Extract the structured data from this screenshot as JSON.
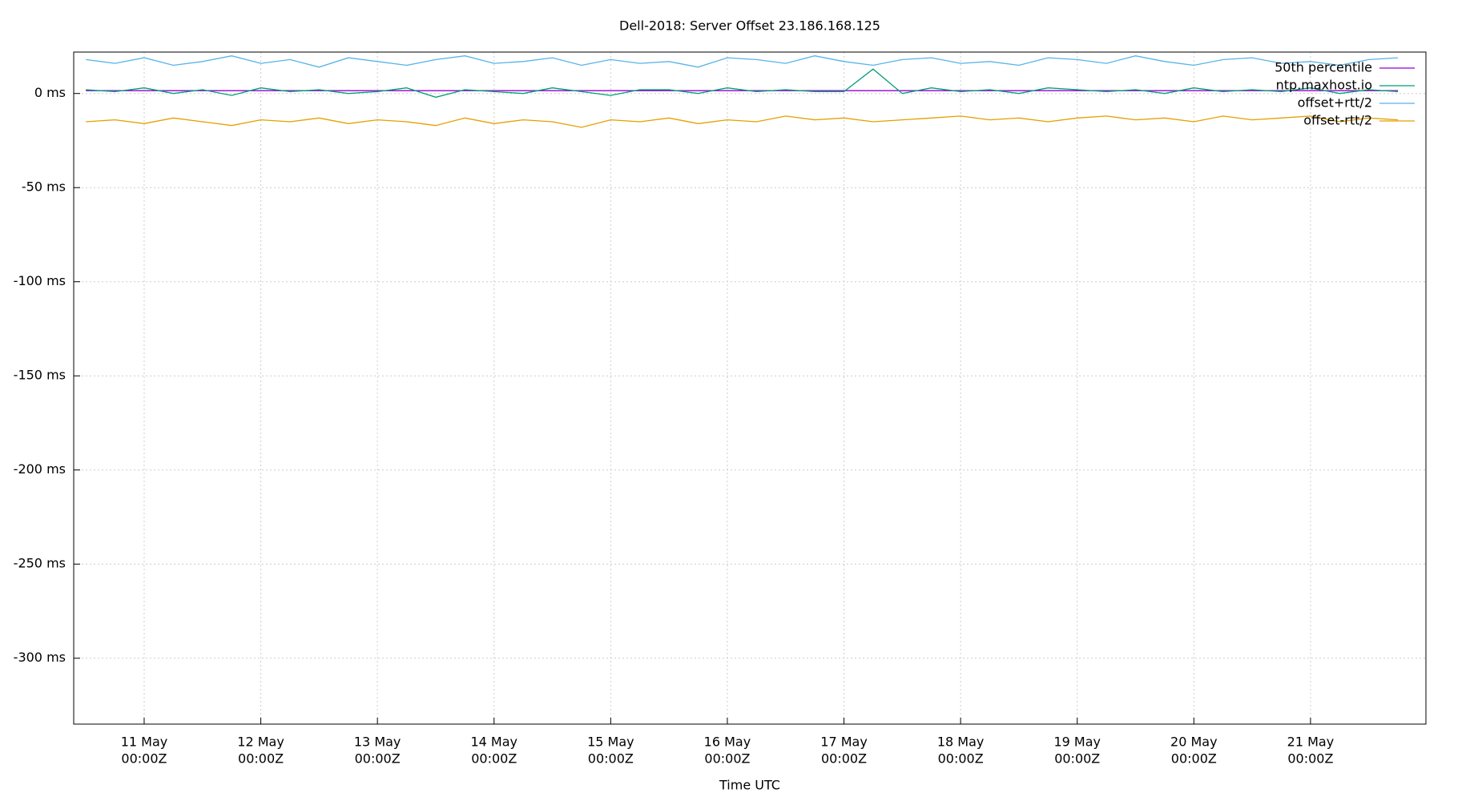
{
  "chart_data": {
    "type": "line",
    "title": "Dell-2018: Server Offset 23.186.168.125",
    "x_label": "Time UTC",
    "x": [
      "10 May 12:00Z",
      "10 May 18:00Z",
      "11 May 00:00Z",
      "11 May 06:00Z",
      "11 May 12:00Z",
      "11 May 18:00Z",
      "12 May 00:00Z",
      "12 May 06:00Z",
      "12 May 12:00Z",
      "12 May 18:00Z",
      "13 May 00:00Z",
      "13 May 06:00Z",
      "13 May 12:00Z",
      "13 May 18:00Z",
      "14 May 00:00Z",
      "14 May 06:00Z",
      "14 May 12:00Z",
      "14 May 18:00Z",
      "15 May 00:00Z",
      "15 May 06:00Z",
      "15 May 12:00Z",
      "15 May 18:00Z",
      "16 May 00:00Z",
      "16 May 06:00Z",
      "16 May 12:00Z",
      "16 May 18:00Z",
      "17 May 00:00Z",
      "17 May 06:00Z",
      "17 May 12:00Z",
      "17 May 18:00Z",
      "18 May 00:00Z",
      "18 May 06:00Z",
      "18 May 12:00Z",
      "18 May 18:00Z",
      "19 May 00:00Z",
      "19 May 06:00Z",
      "19 May 12:00Z",
      "19 May 18:00Z",
      "20 May 00:00Z",
      "20 May 06:00Z",
      "20 May 12:00Z",
      "20 May 18:00Z",
      "21 May 00:00Z",
      "21 May 06:00Z",
      "21 May 12:00Z",
      "21 May 18:00Z"
    ],
    "series": [
      {
        "name": "50th percentile",
        "color": "#9400d3",
        "values": [
          1.5,
          1.5,
          1.5,
          1.5,
          1.5,
          1.5,
          1.5,
          1.5,
          1.5,
          1.5,
          1.5,
          1.5,
          1.5,
          1.5,
          1.5,
          1.5,
          1.5,
          1.5,
          1.5,
          1.5,
          1.5,
          1.5,
          1.5,
          1.5,
          1.5,
          1.5,
          1.5,
          1.5,
          1.5,
          1.5,
          1.5,
          1.5,
          1.5,
          1.5,
          1.5,
          1.5,
          1.5,
          1.5,
          1.5,
          1.5,
          1.5,
          1.5,
          1.5,
          1.5,
          1.5,
          1.5
        ]
      },
      {
        "name": "ntp.maxhost.io",
        "color": "#009e73",
        "values": [
          2,
          1,
          3,
          0,
          2,
          -1,
          3,
          1,
          2,
          0,
          1,
          3,
          -2,
          2,
          1,
          0,
          3,
          1,
          -1,
          2,
          2,
          0,
          3,
          1,
          2,
          1,
          1,
          13,
          0,
          3,
          1,
          2,
          0,
          3,
          2,
          1,
          2,
          0,
          3,
          1,
          2,
          1,
          3,
          0,
          2,
          1
        ]
      },
      {
        "name": "offset+rtt/2",
        "color": "#56b4e9",
        "values": [
          18,
          16,
          19,
          15,
          17,
          20,
          16,
          18,
          14,
          19,
          17,
          15,
          18,
          20,
          16,
          17,
          19,
          15,
          18,
          16,
          17,
          14,
          19,
          18,
          16,
          20,
          17,
          15,
          18,
          19,
          16,
          17,
          15,
          19,
          18,
          16,
          20,
          17,
          15,
          18,
          19,
          16,
          17,
          15,
          18,
          19
        ]
      },
      {
        "name": "offset-rtt/2",
        "color": "#e69f00",
        "values": [
          -15,
          -14,
          -16,
          -13,
          -15,
          -17,
          -14,
          -15,
          -13,
          -16,
          -14,
          -15,
          -17,
          -13,
          -16,
          -14,
          -15,
          -18,
          -14,
          -15,
          -13,
          -16,
          -14,
          -15,
          -12,
          -14,
          -13,
          -15,
          -14,
          -13,
          -12,
          -14,
          -13,
          -15,
          -13,
          -12,
          -14,
          -13,
          -15,
          -12,
          -14,
          -13,
          -12,
          -15,
          -13,
          -14
        ]
      }
    ],
    "xlim": [
      "10 May 09:30Z",
      "21 May 23:45Z"
    ],
    "xticks": [
      {
        "value": "11 May 00:00Z",
        "label": [
          "11 May",
          "00:00Z"
        ]
      },
      {
        "value": "12 May 00:00Z",
        "label": [
          "12 May",
          "00:00Z"
        ]
      },
      {
        "value": "13 May 00:00Z",
        "label": [
          "13 May",
          "00:00Z"
        ]
      },
      {
        "value": "14 May 00:00Z",
        "label": [
          "14 May",
          "00:00Z"
        ]
      },
      {
        "value": "15 May 00:00Z",
        "label": [
          "15 May",
          "00:00Z"
        ]
      },
      {
        "value": "16 May 00:00Z",
        "label": [
          "16 May",
          "00:00Z"
        ]
      },
      {
        "value": "17 May 00:00Z",
        "label": [
          "17 May",
          "00:00Z"
        ]
      },
      {
        "value": "18 May 00:00Z",
        "label": [
          "18 May",
          "00:00Z"
        ]
      },
      {
        "value": "19 May 00:00Z",
        "label": [
          "19 May",
          "00:00Z"
        ]
      },
      {
        "value": "20 May 00:00Z",
        "label": [
          "20 May",
          "00:00Z"
        ]
      },
      {
        "value": "21 May 00:00Z",
        "label": [
          "21 May",
          "00:00Z"
        ]
      }
    ],
    "ylim": [
      -335,
      22
    ],
    "yticks": [
      {
        "value": 0,
        "label": "0 ms"
      },
      {
        "value": -50,
        "label": "-50 ms"
      },
      {
        "value": -100,
        "label": "-100 ms"
      },
      {
        "value": -150,
        "label": "-150 ms"
      },
      {
        "value": -200,
        "label": "-200 ms"
      },
      {
        "value": -250,
        "label": "-250 ms"
      },
      {
        "value": -300,
        "label": "-300 ms"
      }
    ],
    "grid": true,
    "legend": "top-right"
  }
}
